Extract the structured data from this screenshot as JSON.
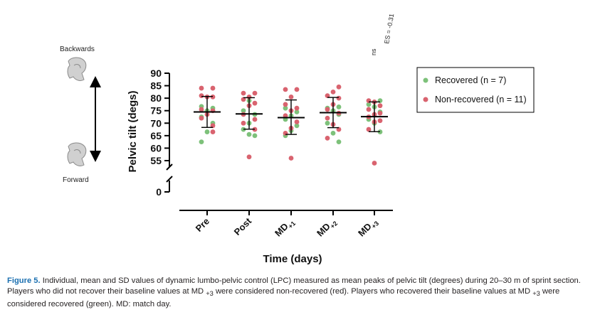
{
  "chart_data": {
    "type": "scatter",
    "subtype": "individual dot plot with mean and SD bars",
    "ylabel": "Pelvic tilt (degs)",
    "xlabel": "Time (days)",
    "y_ticks": [
      "90",
      "85",
      "80",
      "75",
      "70",
      "65",
      "60",
      "55"
    ],
    "y_zero_tick": "0",
    "ylim": [
      50,
      90
    ],
    "axis_break": true,
    "categories": [
      {
        "main": "Pre",
        "sub": ""
      },
      {
        "main": "Post",
        "sub": ""
      },
      {
        "main": "MD",
        "sub": "+1"
      },
      {
        "main": "MD",
        "sub": "+2"
      },
      {
        "main": "MD",
        "sub": "+3"
      }
    ],
    "summary": [
      {
        "mean": 74.5,
        "sd_low": 68.3,
        "sd_high": 80.7
      },
      {
        "mean": 73.7,
        "sd_low": 67.6,
        "sd_high": 80.2
      },
      {
        "mean": 72.2,
        "sd_low": 65.5,
        "sd_high": 79.3
      },
      {
        "mean": 74.2,
        "sd_low": 68.2,
        "sd_high": 80.3
      },
      {
        "mean": 72.6,
        "sd_low": 66.6,
        "sd_high": 78.5
      }
    ],
    "series": [
      {
        "name": "Recovered (n = 7)",
        "color": "#7dc17a",
        "points": [
          [
            [
              76.7,
              -1
            ],
            [
              76.0,
              1
            ],
            [
              75.0,
              0
            ],
            [
              72.5,
              -1
            ],
            [
              70.0,
              1
            ],
            [
              66.5,
              0
            ],
            [
              62.5,
              -1
            ]
          ],
          [
            [
              79.0,
              0
            ],
            [
              75.0,
              -1
            ],
            [
              73.5,
              1
            ],
            [
              70.0,
              0
            ],
            [
              67.5,
              -1
            ],
            [
              65.5,
              0
            ],
            [
              65.0,
              1
            ]
          ],
          [
            [
              76.0,
              -1
            ],
            [
              74.5,
              1
            ],
            [
              73.0,
              0
            ],
            [
              71.5,
              -1
            ],
            [
              69.0,
              1
            ],
            [
              67.0,
              0
            ],
            [
              65.0,
              -1
            ]
          ],
          [
            [
              76.5,
              1
            ],
            [
              76.0,
              -1
            ],
            [
              75.0,
              0
            ],
            [
              73.5,
              1
            ],
            [
              70.0,
              -1
            ],
            [
              66.0,
              0
            ],
            [
              62.5,
              1
            ]
          ],
          [
            [
              79.0,
              1
            ],
            [
              77.5,
              -1
            ],
            [
              76.5,
              0
            ],
            [
              74.5,
              1
            ],
            [
              71.5,
              -1
            ],
            [
              70.0,
              0
            ],
            [
              66.5,
              1
            ]
          ]
        ]
      },
      {
        "name": "Non-recovered (n = 11)",
        "color": "#d9636f",
        "points": [
          [
            [
              84.0,
              -1
            ],
            [
              84.0,
              1
            ],
            [
              81.0,
              -1
            ],
            [
              80.5,
              0
            ],
            [
              80.5,
              1
            ],
            [
              75.5,
              -1
            ],
            [
              75.0,
              1
            ],
            [
              73.5,
              0
            ],
            [
              72.0,
              -1
            ],
            [
              69.0,
              1
            ],
            [
              66.5,
              1
            ]
          ],
          [
            [
              82.0,
              -1
            ],
            [
              82.0,
              1
            ],
            [
              80.5,
              0
            ],
            [
              79.5,
              -1
            ],
            [
              78.0,
              1
            ],
            [
              77.0,
              0
            ],
            [
              73.5,
              -1
            ],
            [
              71.5,
              1
            ],
            [
              70.0,
              -1
            ],
            [
              67.5,
              1
            ],
            [
              56.5,
              0
            ]
          ],
          [
            [
              83.5,
              -1
            ],
            [
              83.5,
              1
            ],
            [
              80.5,
              0
            ],
            [
              77.5,
              -1
            ],
            [
              76.0,
              1
            ],
            [
              75.0,
              0
            ],
            [
              73.0,
              -1
            ],
            [
              70.5,
              1
            ],
            [
              68.0,
              0
            ],
            [
              66.0,
              -1
            ],
            [
              56.0,
              0
            ]
          ],
          [
            [
              84.5,
              1
            ],
            [
              82.5,
              0
            ],
            [
              81.0,
              -1
            ],
            [
              80.0,
              1
            ],
            [
              77.5,
              0
            ],
            [
              75.5,
              -1
            ],
            [
              74.0,
              1
            ],
            [
              72.0,
              -1
            ],
            [
              69.5,
              0
            ],
            [
              67.5,
              1
            ],
            [
              64.0,
              -1
            ]
          ],
          [
            [
              79.0,
              -1
            ],
            [
              78.5,
              0
            ],
            [
              77.0,
              1
            ],
            [
              75.5,
              -1
            ],
            [
              74.0,
              1
            ],
            [
              73.5,
              0
            ],
            [
              72.5,
              -1
            ],
            [
              71.0,
              1
            ],
            [
              70.5,
              0
            ],
            [
              67.5,
              -1
            ],
            [
              54.0,
              0
            ]
          ]
        ]
      }
    ],
    "annotation_es": "ES = -0.31",
    "annotation_ns": "ns",
    "direction_labels": {
      "top": "Backwards",
      "bottom": "Forward"
    },
    "legend_position": "right"
  },
  "caption": {
    "figure_label": "Figure 5.",
    "text_1": " Individual, mean and SD values of dynamic lumbo-pelvic control (LPC) measured as mean peaks of pelvic tilt (degrees) during 20–30 m of sprint section. Players who did not recover their baseline values at MD ",
    "sub_1": "+3",
    "text_2": " were considered non-recovered (red). Players who recovered their baseline values at MD ",
    "sub_2": "+3",
    "text_3": " were considered recovered (green). MD: match day."
  },
  "colors": {
    "recovered": "#7dc17a",
    "non_recovered": "#d9636f",
    "caption_label": "#1a6fb0"
  }
}
